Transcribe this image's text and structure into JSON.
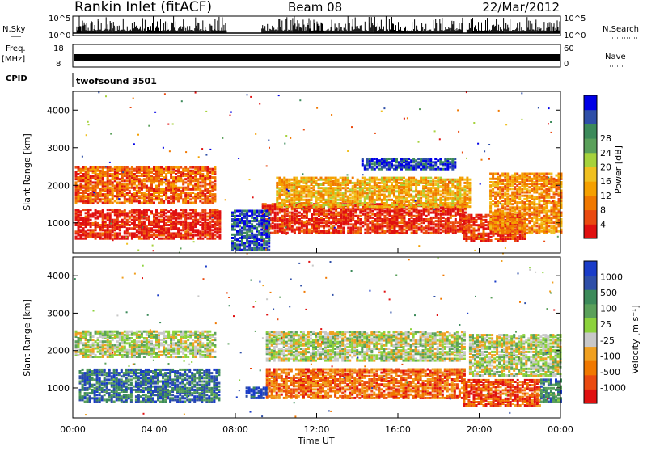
{
  "header": {
    "station": "Rankin Inlet (fitACF)",
    "beam": "Beam 08",
    "date": "22/Mar/2012"
  },
  "params": {
    "nsky_label": "N.Sky",
    "nsearch_label": "N.Search",
    "nsky_ticks": [
      "10^5",
      "10^0"
    ],
    "nsearch_ticks": [
      "10^5",
      "10^0"
    ],
    "freq_label": "Freq.",
    "freq_unit": "[MHz]",
    "freq_ticks": [
      "18",
      "8"
    ],
    "nave_label": "Nave",
    "nave_ticks": [
      "60",
      "0"
    ],
    "cpid_label": "CPID",
    "cpid_value": "twofsound 3501"
  },
  "chart_data": [
    {
      "type": "heatmap",
      "name": "power",
      "ylabel": "Slant Range [km]",
      "xlabel": "",
      "ylim": [
        200,
        4500
      ],
      "yticks": [
        1000,
        2000,
        3000,
        4000
      ],
      "xlim": [
        0,
        24
      ],
      "colorbar": {
        "title": "Power [dB]",
        "ticks": [
          "4",
          "8",
          "12",
          "16",
          "20",
          "24",
          "28"
        ],
        "colors": [
          "#0000e6",
          "#2f4fa8",
          "#3c8a5a",
          "#5aa05a",
          "#a6d23c",
          "#f0c020",
          "#f5a000",
          "#f07800",
          "#ea4a10",
          "#e01010"
        ]
      },
      "regions": [
        {
          "t0": 0.1,
          "t1": 7.2,
          "r0": 550,
          "r1": 1350,
          "level": 0.95
        },
        {
          "t0": 0.1,
          "t1": 7.0,
          "r0": 1500,
          "r1": 2450,
          "level": 0.8
        },
        {
          "t0": 9.3,
          "t1": 19.3,
          "r0": 700,
          "r1": 1500,
          "level": 0.93
        },
        {
          "t0": 10.0,
          "t1": 19.5,
          "r0": 1400,
          "r1": 2200,
          "level": 0.62
        },
        {
          "t0": 19.2,
          "t1": 22.3,
          "r0": 500,
          "r1": 1200,
          "level": 0.92
        },
        {
          "t0": 20.5,
          "t1": 24.0,
          "r0": 700,
          "r1": 2300,
          "level": 0.7
        },
        {
          "t0": 14.2,
          "t1": 18.8,
          "r0": 2400,
          "r1": 2700,
          "level": 0.12
        },
        {
          "t0": 7.8,
          "t1": 9.6,
          "r0": 250,
          "r1": 1300,
          "level": 0.15
        }
      ]
    },
    {
      "type": "heatmap",
      "name": "velocity",
      "ylabel": "Slant Range [km]",
      "xlabel": "Time UT",
      "ylim": [
        200,
        4500
      ],
      "yticks": [
        1000,
        2000,
        3000,
        4000
      ],
      "xlim": [
        0,
        24
      ],
      "xticks": [
        "00:00",
        "04:00",
        "08:00",
        "12:00",
        "16:00",
        "20:00",
        "00:00"
      ],
      "colorbar": {
        "title": "Velocity [m s⁻¹]",
        "ticks": [
          "1000",
          "500",
          "100",
          "25",
          "-25",
          "-100",
          "-500",
          "-1000"
        ],
        "colors": [
          "#1a3cc8",
          "#2f4fa8",
          "#3c8a5a",
          "#5aa05a",
          "#8cd23c",
          "#c8c8c8",
          "#f0a020",
          "#f07800",
          "#ea4a10",
          "#e01010"
        ]
      },
      "regions": [
        {
          "t0": 0.1,
          "t1": 7.0,
          "r0": 1800,
          "r1": 2500,
          "level": 0.5
        },
        {
          "t0": 0.3,
          "t1": 7.2,
          "r0": 600,
          "r1": 1500,
          "level": 0.2
        },
        {
          "t0": 9.5,
          "t1": 19.3,
          "r0": 1700,
          "r1": 2500,
          "level": 0.5
        },
        {
          "t0": 9.5,
          "t1": 19.3,
          "r0": 700,
          "r1": 1500,
          "level": 0.78
        },
        {
          "t0": 19.2,
          "t1": 23.0,
          "r0": 500,
          "r1": 1200,
          "level": 0.85
        },
        {
          "t0": 19.5,
          "t1": 24.0,
          "r0": 1300,
          "r1": 2400,
          "level": 0.5
        },
        {
          "t0": 23.0,
          "t1": 24.0,
          "r0": 600,
          "r1": 1200,
          "level": 0.25
        },
        {
          "t0": 8.5,
          "t1": 9.5,
          "r0": 700,
          "r1": 1000,
          "level": 0.05
        }
      ]
    }
  ]
}
